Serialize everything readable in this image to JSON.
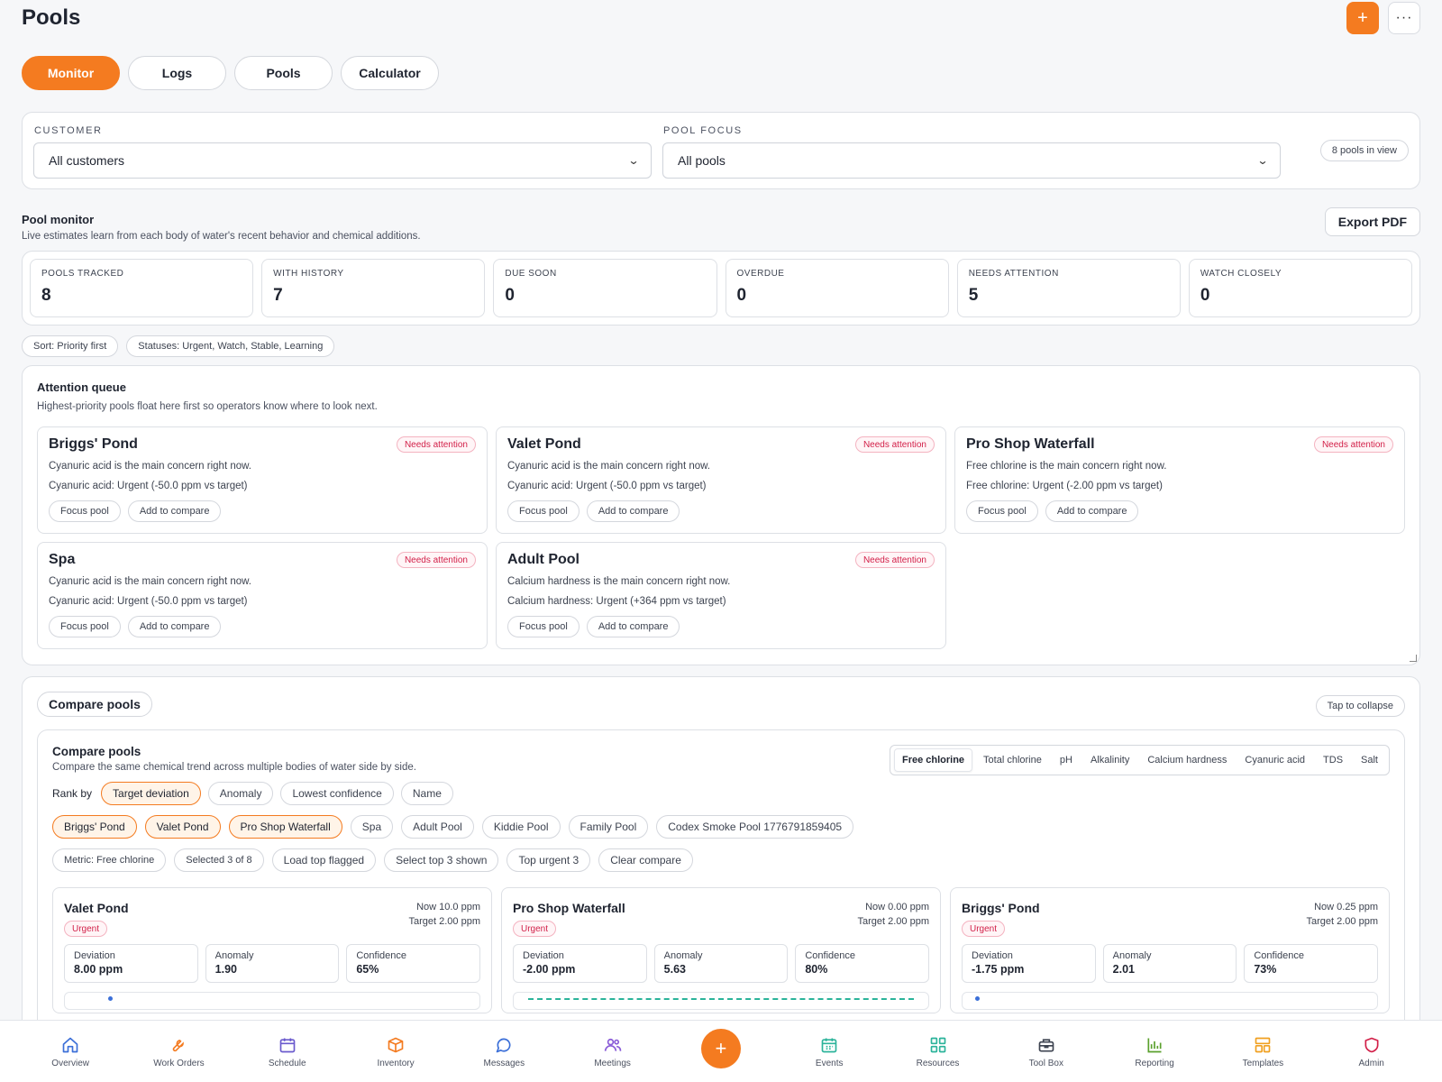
{
  "header": {
    "title": "Pools",
    "add_label": "+",
    "more_label": "···"
  },
  "tabs": [
    {
      "label": "Monitor",
      "active": true
    },
    {
      "label": "Logs",
      "active": false
    },
    {
      "label": "Pools",
      "active": false
    },
    {
      "label": "Calculator",
      "active": false
    }
  ],
  "filters": {
    "customer_label": "CUSTOMER",
    "customer_value": "All customers",
    "pool_focus_label": "POOL FOCUS",
    "pool_focus_value": "All pools",
    "count_pill": "8 pools in view"
  },
  "monitor": {
    "title": "Pool monitor",
    "subtitle": "Live estimates learn from each body of water's recent behavior and chemical additions.",
    "export_label": "Export PDF",
    "stats": [
      {
        "label": "POOLS TRACKED",
        "value": "8"
      },
      {
        "label": "WITH HISTORY",
        "value": "7"
      },
      {
        "label": "DUE SOON",
        "value": "0"
      },
      {
        "label": "OVERDUE",
        "value": "0"
      },
      {
        "label": "NEEDS ATTENTION",
        "value": "5"
      },
      {
        "label": "WATCH CLOSELY",
        "value": "0"
      }
    ],
    "sort_pill": "Sort: Priority first",
    "status_pill": "Statuses: Urgent, Watch, Stable, Learning"
  },
  "queue": {
    "title": "Attention queue",
    "subtitle": "Highest-priority pools float here first so operators know where to look next.",
    "badge": "Needs attention",
    "focus_label": "Focus pool",
    "compare_label": "Add to compare",
    "cards": [
      {
        "name": "Briggs' Pond",
        "concern": "Cyanuric acid is the main concern right now.",
        "detail": "Cyanuric acid: Urgent (-50.0 ppm vs target)"
      },
      {
        "name": "Valet Pond",
        "concern": "Cyanuric acid is the main concern right now.",
        "detail": "Cyanuric acid: Urgent (-50.0 ppm vs target)"
      },
      {
        "name": "Pro Shop Waterfall",
        "concern": "Free chlorine is the main concern right now.",
        "detail": "Free chlorine: Urgent (-2.00 ppm vs target)"
      },
      {
        "name": "Spa",
        "concern": "Cyanuric acid is the main concern right now.",
        "detail": "Cyanuric acid: Urgent (-50.0 ppm vs target)"
      },
      {
        "name": "Adult Pool",
        "concern": "Calcium hardness is the main concern right now.",
        "detail": "Calcium hardness: Urgent (+364 ppm vs target)"
      }
    ]
  },
  "compare": {
    "toggle_label": "Compare pools",
    "collapse_label": "Tap to collapse",
    "title": "Compare pools",
    "subtitle": "Compare the same chemical trend across multiple bodies of water side by side.",
    "metric_tabs": [
      "Free chlorine",
      "Total chlorine",
      "pH",
      "Alkalinity",
      "Calcium hardness",
      "Cyanuric acid",
      "TDS",
      "Salt"
    ],
    "rank_label": "Rank by",
    "rank_options": [
      {
        "label": "Target deviation",
        "on": true
      },
      {
        "label": "Anomaly",
        "on": false
      },
      {
        "label": "Lowest confidence",
        "on": false
      },
      {
        "label": "Name",
        "on": false
      }
    ],
    "pool_chips": [
      {
        "label": "Briggs' Pond",
        "on": true
      },
      {
        "label": "Valet Pond",
        "on": true
      },
      {
        "label": "Pro Shop Waterfall",
        "on": true
      },
      {
        "label": "Spa",
        "on": false
      },
      {
        "label": "Adult Pool",
        "on": false
      },
      {
        "label": "Kiddie Pool",
        "on": false
      },
      {
        "label": "Family Pool",
        "on": false
      },
      {
        "label": "Codex Smoke Pool 1776791859405",
        "on": false
      }
    ],
    "info_pills": [
      "Metric: Free chlorine",
      "Selected 3 of 8"
    ],
    "action_chips": [
      "Load top flagged",
      "Select top 3 shown",
      "Top urgent 3",
      "Clear compare"
    ],
    "urgent_label": "Urgent",
    "deviation_label": "Deviation",
    "anomaly_label": "Anomaly",
    "confidence_label": "Confidence",
    "cards": [
      {
        "name": "Valet Pond",
        "now": "Now 10.0 ppm",
        "target": "Target 2.00 ppm",
        "deviation": "8.00 ppm",
        "anomaly": "1.90",
        "confidence": "65%"
      },
      {
        "name": "Pro Shop Waterfall",
        "now": "Now 0.00 ppm",
        "target": "Target 2.00 ppm",
        "deviation": "-2.00 ppm",
        "anomaly": "5.63",
        "confidence": "80%"
      },
      {
        "name": "Briggs' Pond",
        "now": "Now 0.25 ppm",
        "target": "Target 2.00 ppm",
        "deviation": "-1.75 ppm",
        "anomaly": "2.01",
        "confidence": "73%"
      }
    ]
  },
  "nav": [
    {
      "label": "Overview",
      "icon": "home-icon",
      "color": "#3b6fd8"
    },
    {
      "label": "Work Orders",
      "icon": "wrench-icon",
      "color": "#f47b20"
    },
    {
      "label": "Schedule",
      "icon": "calendar-icon",
      "color": "#6a5acd"
    },
    {
      "label": "Inventory",
      "icon": "box-icon",
      "color": "#f47b20"
    },
    {
      "label": "Messages",
      "icon": "chat-icon",
      "color": "#3b6fd8"
    },
    {
      "label": "Meetings",
      "icon": "people-icon",
      "color": "#8a5cd8"
    },
    {
      "label": "Events",
      "icon": "calendar-check-icon",
      "color": "#2bb39a"
    },
    {
      "label": "Resources",
      "icon": "grid-icon",
      "color": "#2bb39a"
    },
    {
      "label": "Tool Box",
      "icon": "toolbox-icon",
      "color": "#3d4350"
    },
    {
      "label": "Reporting",
      "icon": "bar-chart-icon",
      "color": "#5aa02c"
    },
    {
      "label": "Templates",
      "icon": "template-icon",
      "color": "#f0a020"
    },
    {
      "label": "Admin",
      "icon": "shield-icon",
      "color": "#d21f48"
    }
  ],
  "fab_label": "+"
}
